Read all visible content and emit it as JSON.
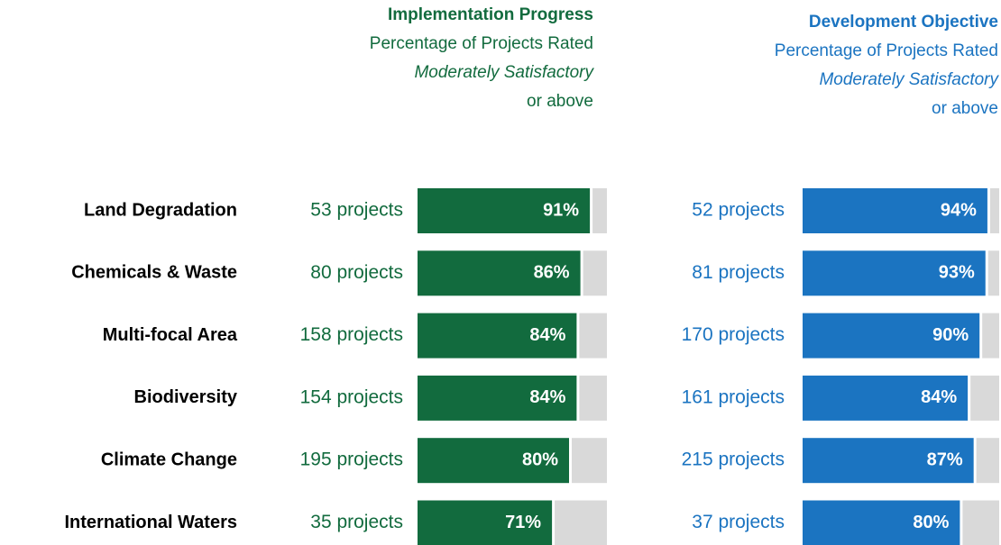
{
  "chart_data": [
    {
      "type": "bar",
      "title": "Implementation Progress",
      "subtitle": [
        "Percentage of Projects Rated",
        "Moderately Satisfactory",
        "or above"
      ],
      "categories": [
        "Land Degradation",
        "Chemicals & Waste",
        "Multi-focal Area",
        "Biodiversity",
        "Climate Change",
        "International Waters"
      ],
      "annotations": [
        "53 projects",
        "80 projects",
        "158 projects",
        "154 projects",
        "195 projects",
        "35 projects"
      ],
      "values": [
        91,
        86,
        84,
        84,
        80,
        71
      ],
      "value_labels": [
        "91%",
        "86%",
        "84%",
        "84%",
        "80%",
        "71%"
      ],
      "color": "#126b3e",
      "xlim": [
        0,
        100
      ]
    },
    {
      "type": "bar",
      "title": "Development Objective",
      "subtitle": [
        "Percentage of Projects Rated",
        "Moderately Satisfactory",
        "or above"
      ],
      "annotations": [
        "52 projects",
        "81 projects",
        "170 projects",
        "161 projects",
        "215 projects",
        "37 projects"
      ],
      "values": [
        94,
        93,
        90,
        84,
        87,
        80
      ],
      "value_labels": [
        "94%",
        "93%",
        "90%",
        "84%",
        "87%",
        "80%"
      ],
      "color": "#1b74c1",
      "xlim": [
        0,
        100
      ]
    }
  ]
}
